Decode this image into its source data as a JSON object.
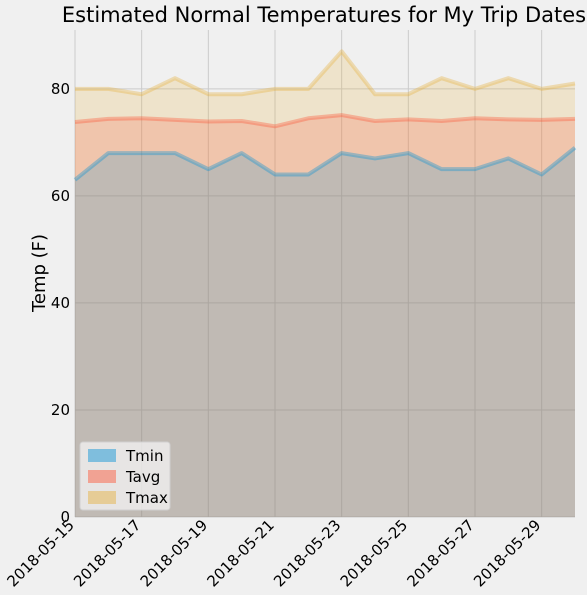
{
  "chart_data": {
    "type": "area",
    "title": "Estimated Normal Temperatures for My Trip Dates",
    "xlabel": "",
    "ylabel": "Temp (F)",
    "x": [
      "2018-05-15",
      "2018-05-16",
      "2018-05-17",
      "2018-05-18",
      "2018-05-19",
      "2018-05-20",
      "2018-05-21",
      "2018-05-22",
      "2018-05-23",
      "2018-05-24",
      "2018-05-25",
      "2018-05-26",
      "2018-05-27",
      "2018-05-28",
      "2018-05-29",
      "2018-05-30"
    ],
    "x_ticks": [
      "2018-05-15",
      "2018-05-17",
      "2018-05-19",
      "2018-05-21",
      "2018-05-23",
      "2018-05-25",
      "2018-05-27",
      "2018-05-29"
    ],
    "ylim": [
      0,
      91
    ],
    "y_ticks": [
      0,
      20,
      40,
      60,
      80
    ],
    "grid": true,
    "stacked": false,
    "legend_position": "lower-left",
    "series": [
      {
        "name": "Tmin",
        "color": "#008fd5",
        "values": [
          63,
          68,
          68,
          68,
          65,
          68,
          64,
          64,
          68,
          67,
          68,
          65,
          65,
          67,
          64,
          69
        ]
      },
      {
        "name": "Tavg",
        "color": "#fc4f30",
        "values": [
          73.8,
          74.4,
          74.5,
          74.2,
          73.9,
          74.0,
          73.0,
          74.5,
          75.1,
          74.0,
          74.3,
          74.0,
          74.5,
          74.3,
          74.2,
          74.4
        ]
      },
      {
        "name": "Tmax",
        "color": "#e5ae38",
        "values": [
          80,
          80,
          79,
          82,
          79,
          79,
          80,
          80,
          87,
          79,
          79,
          82,
          80,
          82,
          80,
          81
        ]
      }
    ]
  }
}
